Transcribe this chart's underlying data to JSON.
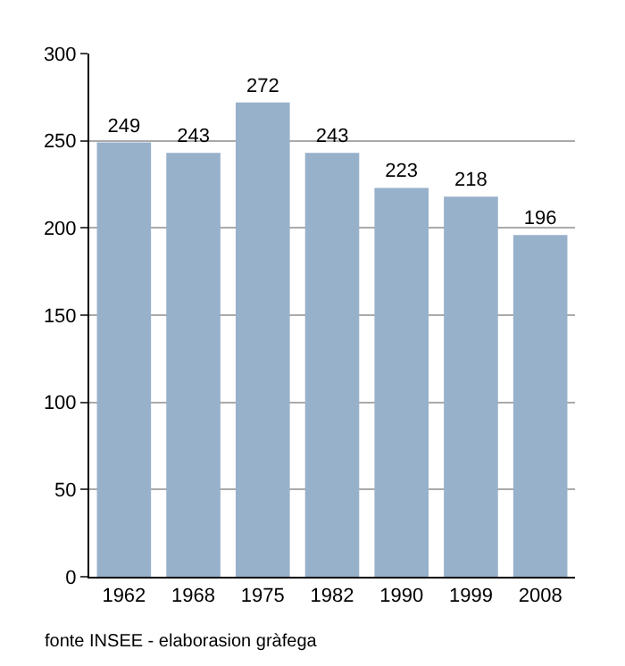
{
  "chart_data": {
    "type": "bar",
    "categories": [
      "1962",
      "1968",
      "1975",
      "1982",
      "1990",
      "1999",
      "2008"
    ],
    "values": [
      249,
      243,
      272,
      243,
      223,
      218,
      196
    ],
    "color": "#98b1cb",
    "ylim": [
      0,
      300
    ],
    "yticks": [
      0,
      50,
      100,
      150,
      200,
      250,
      300
    ],
    "grid": "y",
    "data_labels": true,
    "annotations": [
      "fonte INSEE - elaborasion gràfega"
    ]
  }
}
